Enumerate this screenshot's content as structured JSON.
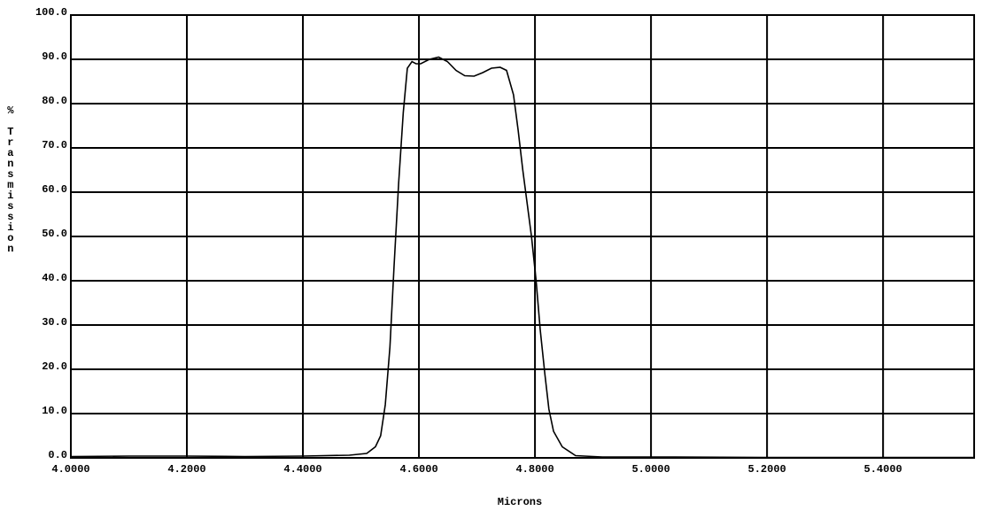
{
  "chart_data": {
    "type": "line",
    "x_label": "Microns",
    "y_label": "% Transmission",
    "xlim": [
      4.0,
      5.557
    ],
    "ylim": [
      0,
      100
    ],
    "xticks": [
      {
        "value": 4.0,
        "label": "4.0000"
      },
      {
        "value": 4.2,
        "label": "4.2000"
      },
      {
        "value": 4.4,
        "label": "4.4000"
      },
      {
        "value": 4.6,
        "label": "4.6000"
      },
      {
        "value": 4.8,
        "label": "4.8000"
      },
      {
        "value": 5.0,
        "label": "5.0000"
      },
      {
        "value": 5.2,
        "label": "5.2000"
      },
      {
        "value": 5.4,
        "label": "5.4000"
      }
    ],
    "yticks": [
      {
        "value": 0,
        "label": "0.0"
      },
      {
        "value": 10,
        "label": "10.0"
      },
      {
        "value": 20,
        "label": "20.0"
      },
      {
        "value": 30,
        "label": "30.0"
      },
      {
        "value": 40,
        "label": "40.0"
      },
      {
        "value": 50,
        "label": "50.0"
      },
      {
        "value": 60,
        "label": "60.0"
      },
      {
        "value": 70,
        "label": "70.0"
      },
      {
        "value": 80,
        "label": "80.0"
      },
      {
        "value": 90,
        "label": "90.0"
      },
      {
        "value": 100,
        "label": "100.0"
      }
    ],
    "grid": true,
    "series": [
      {
        "color": "#000000",
        "x": [
          4.0,
          4.1,
          4.2,
          4.3,
          4.4,
          4.48,
          4.51,
          4.525,
          4.534,
          4.542,
          4.55,
          4.557,
          4.565,
          4.573,
          4.58,
          4.588,
          4.595,
          4.603,
          4.618,
          4.634,
          4.649,
          4.664,
          4.679,
          4.695,
          4.71,
          4.725,
          4.74,
          4.751,
          4.763,
          4.771,
          4.779,
          4.786,
          4.794,
          4.802,
          4.809,
          4.817,
          4.824,
          4.832,
          4.847,
          4.87,
          4.916,
          5.0,
          5.2,
          5.4,
          5.557
        ],
        "values": [
          0.3,
          0.4,
          0.4,
          0.3,
          0.4,
          0.6,
          1,
          2.5,
          5,
          12,
          25,
          43,
          62,
          78,
          88,
          89.5,
          89,
          89,
          90,
          90.5,
          89.5,
          87.5,
          86.3,
          86.2,
          87,
          88,
          88.2,
          87.5,
          82,
          74,
          65,
          58,
          50,
          40,
          29,
          19,
          11,
          6,
          2.5,
          0.5,
          0.2,
          0.2,
          0.1,
          0.1,
          0.1
        ]
      }
    ]
  }
}
